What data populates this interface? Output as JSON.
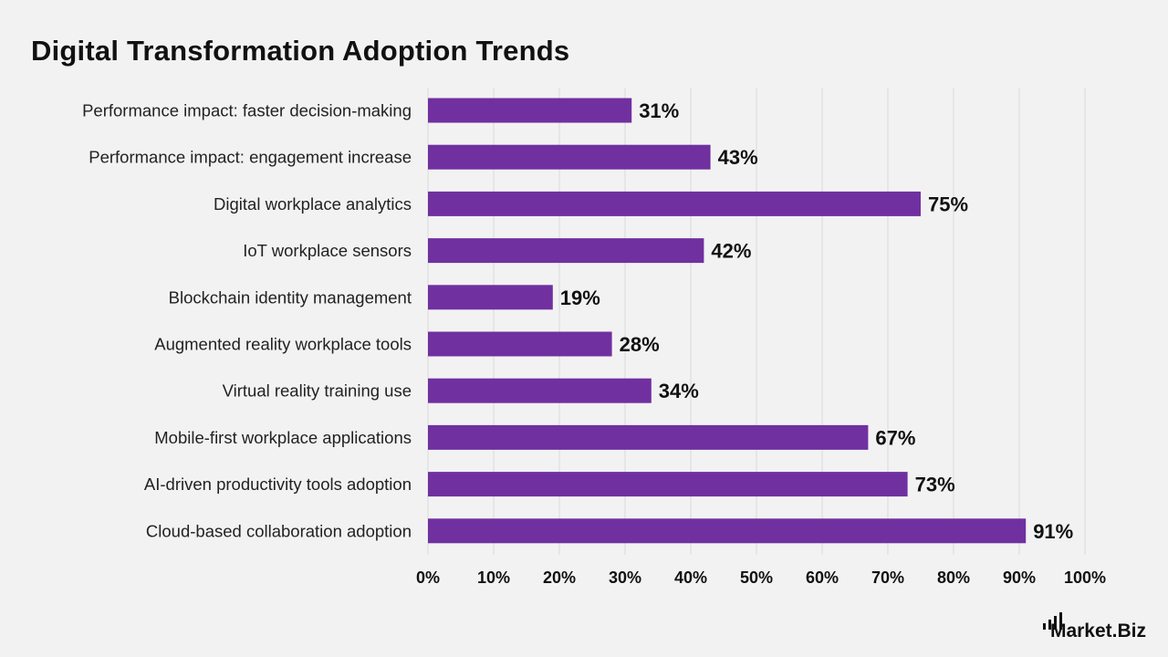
{
  "chart_data": {
    "type": "bar",
    "orientation": "horizontal",
    "title": "Digital Transformation Adoption Trends",
    "categories": [
      "Performance impact: faster decision-making",
      "Performance impact: engagement increase",
      "Digital workplace analytics",
      "IoT workplace sensors",
      "Blockchain identity management",
      "Augmented reality workplace tools",
      "Virtual reality training use",
      "Mobile-first workplace applications",
      "AI-driven productivity tools adoption",
      "Cloud-based collaboration adoption"
    ],
    "values": [
      31,
      43,
      75,
      42,
      19,
      28,
      34,
      67,
      73,
      91
    ],
    "value_labels": [
      "31%",
      "43%",
      "75%",
      "42%",
      "19%",
      "28%",
      "34%",
      "67%",
      "73%",
      "91%"
    ],
    "xlim": [
      0,
      100
    ],
    "xticks": [
      "0%",
      "10%",
      "20%",
      "30%",
      "40%",
      "50%",
      "60%",
      "70%",
      "80%",
      "90%",
      "100%"
    ],
    "grid": "vertical",
    "bar_color": "#7030a0"
  },
  "brand": {
    "text_main": "Market",
    "text_dot": ".Biz"
  }
}
